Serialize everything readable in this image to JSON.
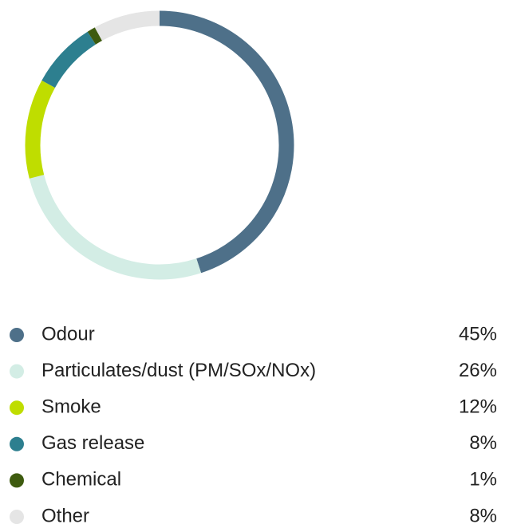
{
  "chart_data": {
    "type": "donut",
    "categories": [
      "Odour",
      "Particulates/dust (PM/SOx/NOx)",
      "Smoke",
      "Gas release",
      "Chemical",
      "Other"
    ],
    "values": [
      45,
      26,
      12,
      8,
      1,
      8
    ],
    "value_labels": [
      "45%",
      "26%",
      "12%",
      "8%",
      "1%",
      "8%"
    ],
    "colors": [
      "#4e7089",
      "#d3ede5",
      "#bfdd00",
      "#2d7f8f",
      "#3e5b0f",
      "#e5e5e5"
    ]
  }
}
